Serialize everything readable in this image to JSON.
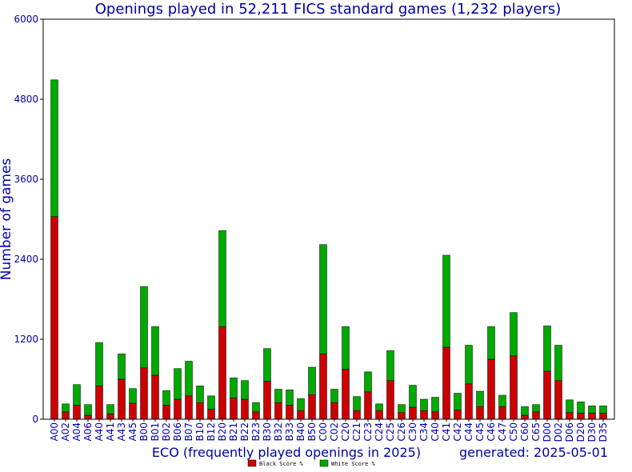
{
  "chart_data": {
    "type": "bar",
    "stacked": true,
    "title": "Openings played in 52,211 FICS standard games (1,232 players)",
    "xlabel": "ECO (frequently played openings in 2025)",
    "ylabel": "Number of games",
    "generated": "generated: 2025-05-01",
    "ylim": [
      0,
      6000
    ],
    "yticks": [
      "0",
      "1200",
      "2400",
      "3600",
      "4800",
      "6000"
    ],
    "ytick_values": [
      0,
      1200,
      2400,
      3600,
      4800,
      6000
    ],
    "legend_position": "bottom-center",
    "categories": [
      "A00",
      "A02",
      "A04",
      "A06",
      "A40",
      "A41",
      "A43",
      "A45",
      "B00",
      "B01",
      "B02",
      "B06",
      "B07",
      "B10",
      "B12",
      "B20",
      "B21",
      "B22",
      "B23",
      "B30",
      "B32",
      "B33",
      "B40",
      "B50",
      "C00",
      "C02",
      "C20",
      "C21",
      "C23",
      "C24",
      "C25",
      "C26",
      "C30",
      "C34",
      "C40",
      "C41",
      "C42",
      "C44",
      "C45",
      "C46",
      "C47",
      "C50",
      "C60",
      "C65",
      "D00",
      "D02",
      "D06",
      "D20",
      "D30",
      "D35"
    ],
    "series": [
      {
        "name": "Black Score %",
        "color": "#cc0000",
        "values": [
          3040,
          110,
          210,
          60,
          500,
          80,
          600,
          240,
          770,
          660,
          210,
          300,
          350,
          250,
          150,
          1390,
          320,
          300,
          110,
          570,
          250,
          210,
          130,
          370,
          980,
          250,
          750,
          130,
          410,
          130,
          580,
          100,
          180,
          130,
          110,
          1080,
          140,
          530,
          190,
          900,
          190,
          950,
          60,
          110,
          720,
          580,
          100,
          90,
          90,
          90
        ]
      },
      {
        "name": "White Score %",
        "color": "#00aa00",
        "values": [
          2050,
          120,
          310,
          160,
          650,
          140,
          380,
          220,
          1220,
          730,
          220,
          460,
          520,
          250,
          200,
          1440,
          300,
          280,
          140,
          490,
          200,
          230,
          180,
          410,
          1640,
          200,
          640,
          210,
          300,
          100,
          450,
          120,
          330,
          170,
          220,
          1380,
          250,
          580,
          230,
          490,
          170,
          650,
          130,
          110,
          680,
          530,
          190,
          170,
          110,
          110
        ]
      }
    ]
  }
}
